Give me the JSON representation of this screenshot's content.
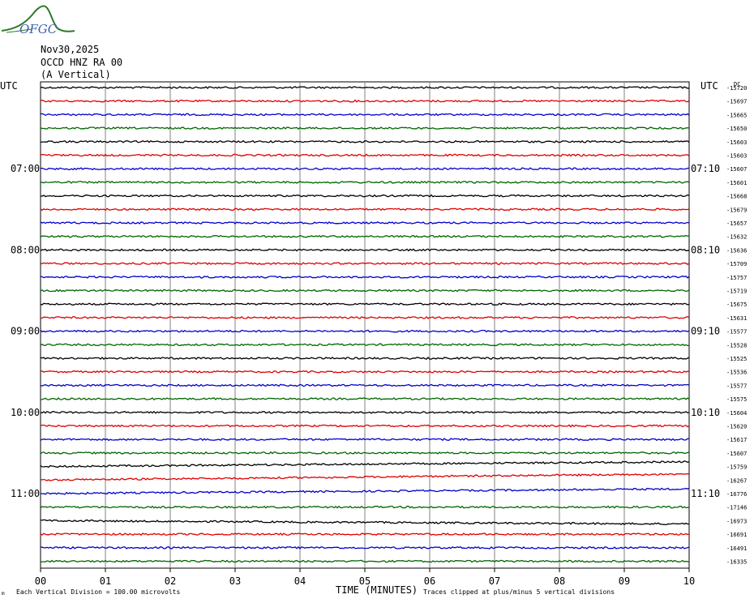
{
  "logo": {
    "text": "OFGC"
  },
  "header": {
    "date": "Nov30,2025",
    "station": "OCCD HNZ RA 00",
    "component": "(A Vertical)"
  },
  "left_axis_label": "UTC",
  "right_axis_label": "UTC",
  "right_top_label": "DC",
  "footer": {
    "scale_note": "Each Vertical Division =  100.00 microvolts",
    "xlabel": "TIME (MINUTES)",
    "clip_note": "Traces clipped at plus/minus 5 vertical divisions"
  },
  "colors": {
    "trace_cycle": [
      "#000000",
      "#e00000",
      "#0000cc",
      "#006600"
    ],
    "grid": "#808080",
    "logo": "#2d7a2d"
  },
  "chart_data": {
    "type": "line",
    "title": "",
    "xlabel": "TIME (MINUTES)",
    "ylabel": "UTC",
    "xlim": [
      0,
      10
    ],
    "x_ticks": [
      "00",
      "01",
      "02",
      "03",
      "04",
      "05",
      "06",
      "07",
      "08",
      "09",
      "10"
    ],
    "left_time_labels": [
      {
        "row": 6,
        "label": "07:00"
      },
      {
        "row": 12,
        "label": "08:00"
      },
      {
        "row": 18,
        "label": "09:00"
      },
      {
        "row": 24,
        "label": "10:00"
      },
      {
        "row": 30,
        "label": "11:00"
      }
    ],
    "right_time_labels": [
      {
        "row": 6,
        "label": "07:10"
      },
      {
        "row": 12,
        "label": "08:10"
      },
      {
        "row": 18,
        "label": "09:10"
      },
      {
        "row": 24,
        "label": "10:10"
      },
      {
        "row": 30,
        "label": "11:10"
      }
    ],
    "dc_offsets": [
      -15720,
      -15697,
      -15665,
      -15650,
      -15603,
      -15603,
      -15607,
      -15601,
      -15668,
      -15679,
      -15657,
      -15632,
      -15636,
      -15709,
      -15757,
      -15719,
      -15675,
      -15631,
      -15577,
      -15528,
      -15525,
      -15536,
      -15577,
      -15575,
      -15604,
      -15620,
      -15617,
      -15607,
      -15759,
      -16267,
      -16776,
      -17146,
      -16973,
      -16691,
      -16491,
      -16335
    ],
    "trace_drift_divisions": [
      0,
      0,
      0,
      0,
      0,
      0,
      0,
      0,
      0,
      0,
      0,
      0,
      0,
      0,
      0,
      0,
      0,
      0,
      0,
      0,
      0,
      0,
      0,
      0,
      0,
      0,
      0,
      0,
      0.35,
      0.45,
      0.35,
      0,
      -0.25,
      0,
      0,
      0
    ],
    "grid": true
  }
}
